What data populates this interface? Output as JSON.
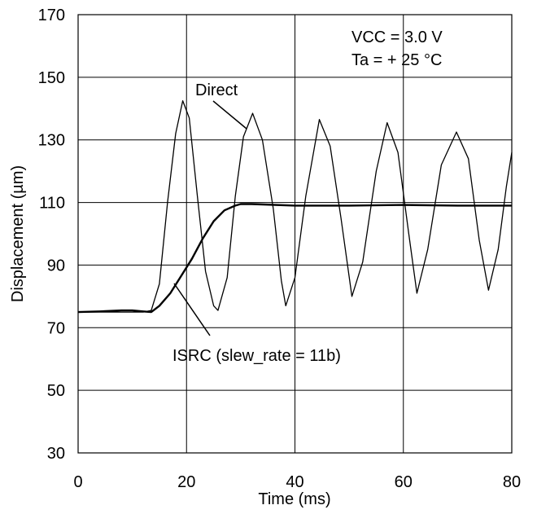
{
  "chart_data": {
    "type": "line",
    "xlabel": "Time (ms)",
    "ylabel": "Displacement (µm)",
    "xlim": [
      0,
      80
    ],
    "ylim": [
      30,
      170
    ],
    "x_ticks": [
      "0",
      "20",
      "40",
      "60",
      "80"
    ],
    "y_ticks": [
      "30",
      "50",
      "70",
      "90",
      "110",
      "130",
      "150",
      "170"
    ],
    "grid": true,
    "annotations": {
      "conditions_1": "VCC = 3.0 V",
      "conditions_2": "Ta = + 25 °C"
    },
    "series": [
      {
        "name": "Direct",
        "x": [
          0,
          12,
          13.5,
          15,
          16.5,
          18,
          19.3,
          20.5,
          22,
          23.5,
          25,
          25.8,
          27.5,
          29,
          30.5,
          32.2,
          34,
          36,
          37.5,
          38.3,
          40,
          42,
          44.5,
          46.5,
          48.5,
          50.5,
          52.5,
          55,
          57,
          59,
          61,
          62.5,
          64.5,
          67,
          69.8,
          72,
          74,
          75.7,
          77.5,
          79,
          80
        ],
        "y": [
          75,
          75,
          75.5,
          84,
          110,
          132,
          142.5,
          137,
          112,
          88,
          77,
          75.5,
          86,
          112,
          131,
          138.5,
          130,
          108,
          85,
          77,
          86,
          112,
          136.5,
          128,
          105,
          80,
          91,
          120,
          135.5,
          126,
          100,
          81,
          95,
          122,
          132.5,
          124,
          98,
          82,
          95,
          115,
          126
        ]
      },
      {
        "name": "ISRC (slew_rate = 11b)",
        "x": [
          0,
          4,
          8,
          10,
          12,
          13.5,
          15,
          17,
          19,
          21,
          23,
          25,
          27,
          29,
          30,
          32,
          40,
          50,
          60,
          70,
          80
        ],
        "y": [
          75,
          75.2,
          75.5,
          75.5,
          75.2,
          75,
          77,
          81,
          86.5,
          92,
          98.5,
          104,
          107.5,
          109,
          109.5,
          109.5,
          109,
          109,
          109.2,
          109,
          109
        ]
      }
    ]
  }
}
